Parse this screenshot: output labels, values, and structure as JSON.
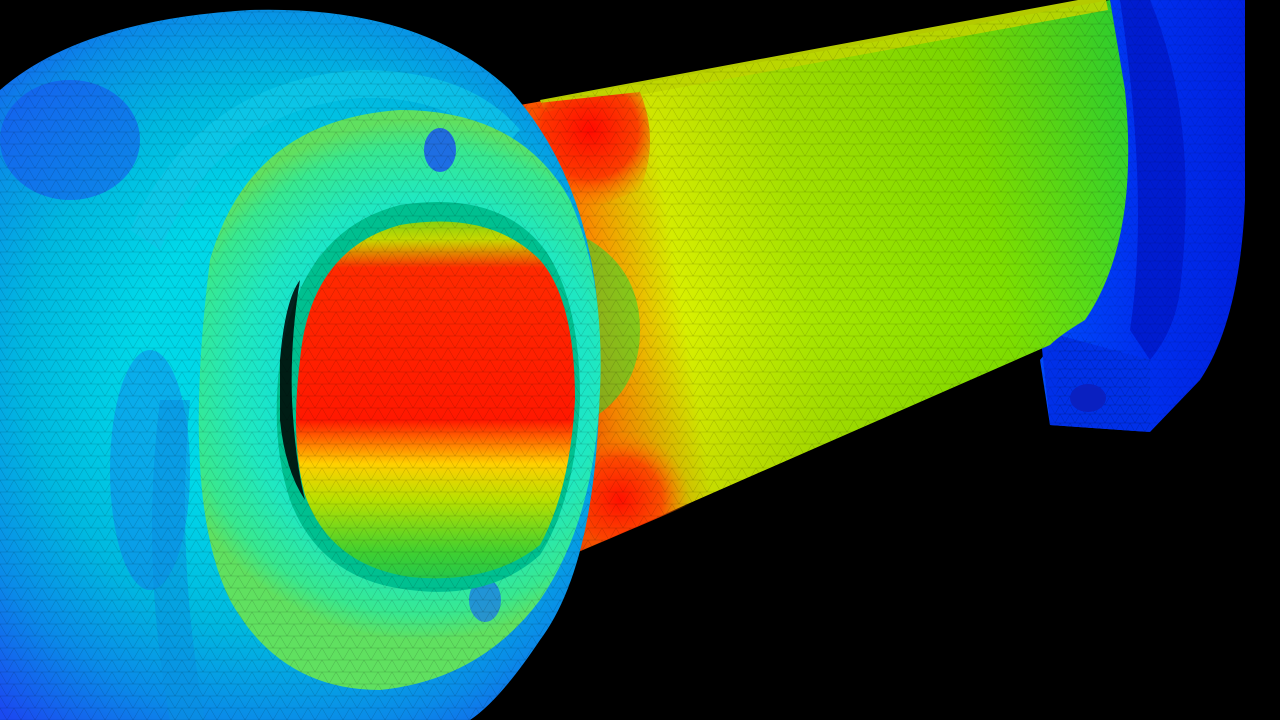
{
  "scene": {
    "subject": "connecting-rod",
    "visualization": "stress-contour",
    "background_color": "#000000",
    "colormap": [
      "#0000ff",
      "#00ffff",
      "#00ff00",
      "#ffff00",
      "#ff0000"
    ],
    "mesh_overlay": true
  }
}
